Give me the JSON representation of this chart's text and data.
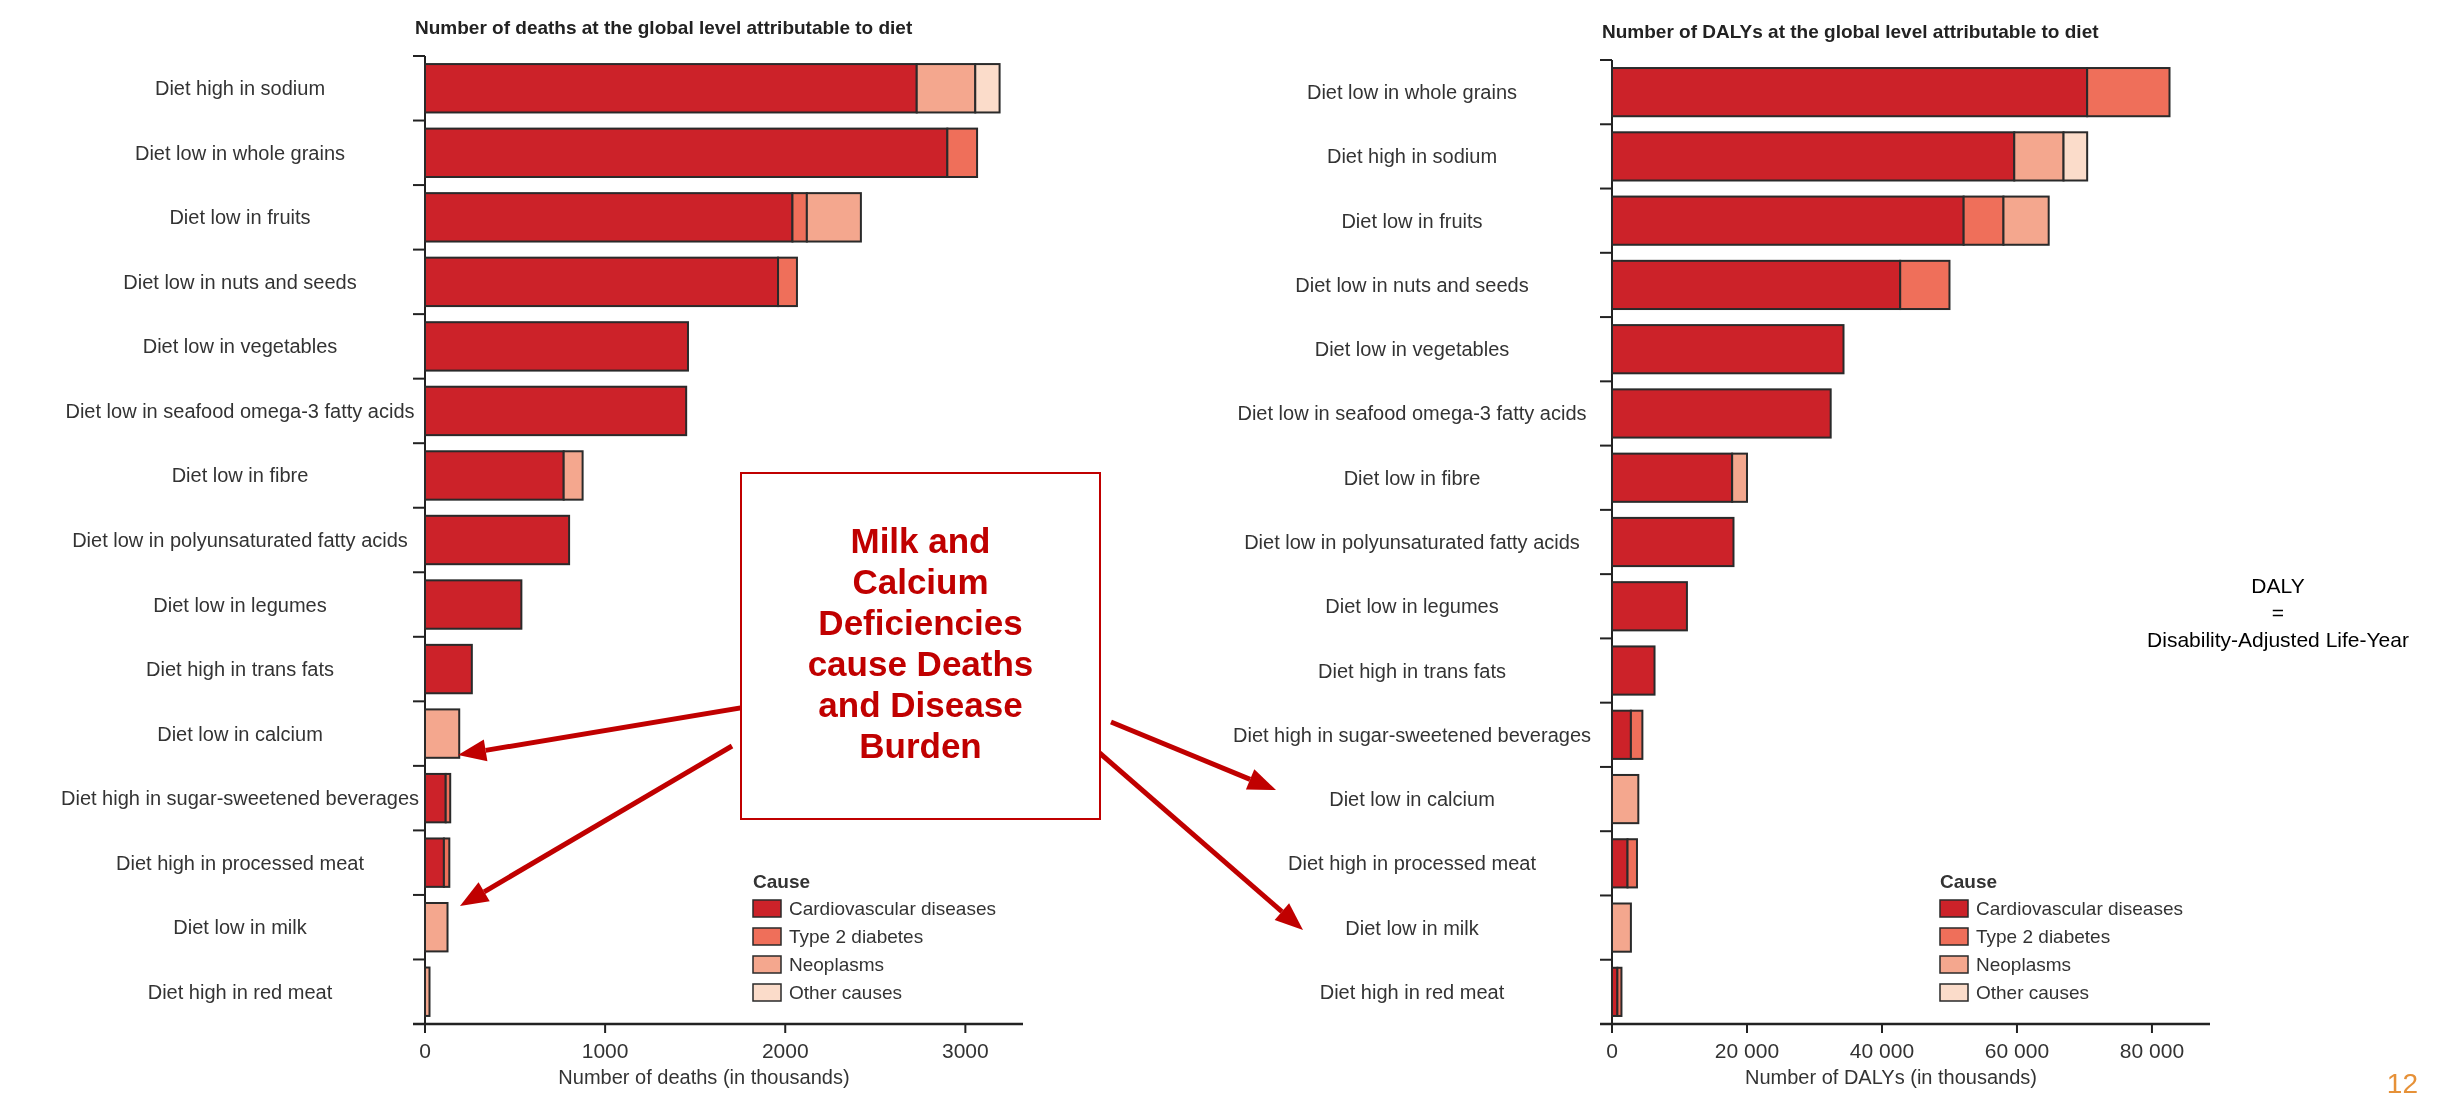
{
  "chart_data": [
    {
      "type": "bar",
      "orientation": "horizontal",
      "stacked": true,
      "title": "Number of deaths at the global level attributable to diet",
      "xlabel": "Number of deaths (in thousands)",
      "categories": [
        "Diet high in sodium",
        "Diet low in whole grains",
        "Diet low in fruits",
        "Diet low in nuts and seeds",
        "Diet low in vegetables",
        "Diet low in seafood omega-3 fatty acids",
        "Diet low in fibre",
        "Diet low in polyunsaturated fatty acids",
        "Diet low in legumes",
        "Diet high in trans fats",
        "Diet low in calcium",
        "Diet high in sugar-sweetened beverages",
        "Diet high in processed meat",
        "Diet low in milk",
        "Diet high in red meat"
      ],
      "series": [
        {
          "name": "Cardiovascular diseases",
          "color": "#cc2229",
          "values": [
            2730,
            2900,
            2040,
            1960,
            1460,
            1450,
            770,
            800,
            535,
            260,
            null,
            115,
            105,
            null,
            null
          ]
        },
        {
          "name": "Type 2 diabetes",
          "color": "#ef6f5a",
          "values": [
            null,
            165,
            80,
            105,
            null,
            null,
            null,
            null,
            null,
            null,
            null,
            25,
            30,
            null,
            null
          ]
        },
        {
          "name": "Neoplasms",
          "color": "#f4a78e",
          "values": [
            325,
            null,
            300,
            null,
            null,
            null,
            105,
            null,
            null,
            null,
            190,
            null,
            null,
            125,
            25
          ]
        },
        {
          "name": "Other causes",
          "color": "#fbdcca",
          "values": [
            135,
            null,
            null,
            null,
            null,
            null,
            null,
            null,
            null,
            null,
            null,
            null,
            null,
            null,
            null
          ]
        }
      ],
      "xlim": [
        0,
        3320
      ],
      "xticks": [
        0,
        1000,
        2000,
        3000
      ],
      "legend": "bottom right",
      "legend_title": "Cause",
      "annotations": [
        "Milk and\nCalcium\nDeficiencies\ncause Deaths\nand Disease\nBurden"
      ]
    },
    {
      "type": "bar",
      "orientation": "horizontal",
      "stacked": true,
      "title": "Number of DALYs at the global level attributable to diet",
      "xlabel": "Number of DALYs (in thousands)",
      "categories": [
        "Diet low in whole grains",
        "Diet high in sodium",
        "Diet low in fruits",
        "Diet low in nuts and seeds",
        "Diet low in vegetables",
        "Diet low in seafood omega-3 fatty acids",
        "Diet low in fibre",
        "Diet low in polyunsaturated fatty acids",
        "Diet low in legumes",
        "Diet high in trans fats",
        "Diet high in sugar-sweetened beverages",
        "Diet low in calcium",
        "Diet high in processed meat",
        "Diet low in milk",
        "Diet high in red meat"
      ],
      "series": [
        {
          "name": "Cardiovascular diseases",
          "color": "#cc2229",
          "values": [
            70400,
            59600,
            52100,
            42700,
            34300,
            32400,
            17800,
            18000,
            11100,
            6300,
            2800,
            null,
            2300,
            null,
            800
          ]
        },
        {
          "name": "Type 2 diabetes",
          "color": "#ef6f5a",
          "values": [
            12200,
            null,
            5900,
            7300,
            null,
            null,
            null,
            null,
            null,
            null,
            1700,
            null,
            1400,
            null,
            600
          ]
        },
        {
          "name": "Neoplasms",
          "color": "#f4a78e",
          "values": [
            null,
            7300,
            6700,
            null,
            null,
            null,
            2200,
            null,
            null,
            null,
            null,
            3900,
            null,
            2800,
            null
          ]
        },
        {
          "name": "Other causes",
          "color": "#fbdcca",
          "values": [
            null,
            3500,
            null,
            null,
            null,
            null,
            null,
            null,
            null,
            null,
            null,
            null,
            null,
            null,
            null
          ]
        }
      ],
      "xlim": [
        0,
        88600
      ],
      "xticks": [
        0,
        {
          "value": 20000,
          "label": "20 000"
        },
        {
          "value": 40000,
          "label": "40 000"
        },
        {
          "value": 60000,
          "label": "60 000"
        },
        {
          "value": 80000,
          "label": "80 000"
        }
      ],
      "legend": "bottom right",
      "legend_title": "Cause",
      "annotations": [
        "DALY\n=\nDisability-Adjusted Life-Year",
        "12"
      ]
    }
  ]
}
